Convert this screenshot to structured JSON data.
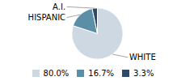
{
  "chart_data": {
    "type": "pie",
    "categories": [
      "WHITE",
      "HISPANIC",
      "A.I."
    ],
    "values": [
      80.0,
      16.7,
      3.3
    ],
    "value_labels": [
      "80.0%",
      "16.7%",
      "3.3%"
    ],
    "colors": [
      "#cdd8e3",
      "#5b8fa8",
      "#2e4a6b"
    ],
    "legend": "bottom"
  }
}
